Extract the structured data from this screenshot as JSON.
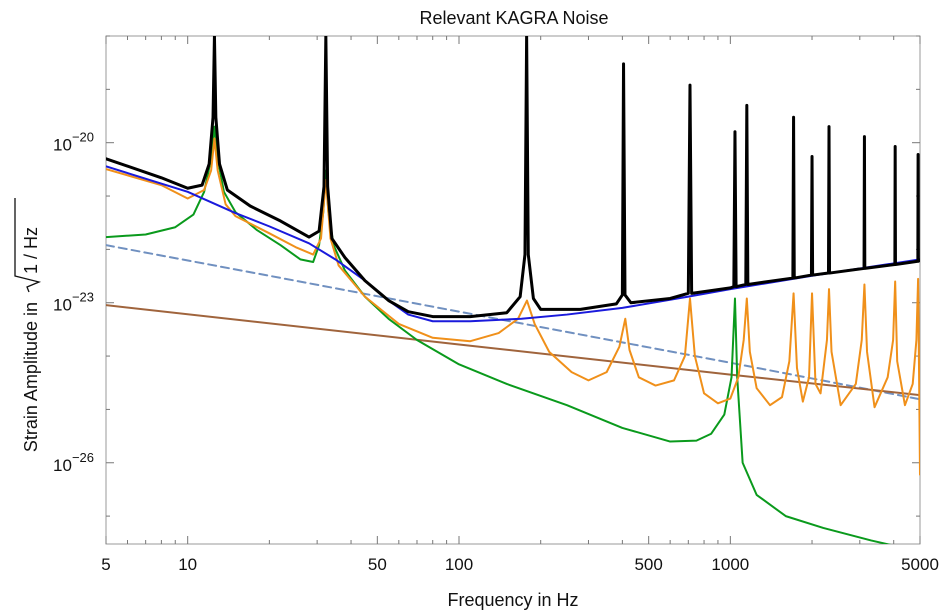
{
  "chart_data": {
    "type": "line",
    "title": "Relevant KAGRA Noise",
    "xlabel": "Frequency in Hz",
    "ylabel_prefix": "Strain Amplitude in",
    "ylabel_radicand": "1 / Hz",
    "x_scale": "log",
    "y_scale": "log",
    "xlim": [
      5,
      5000
    ],
    "ylim": [
      3e-28,
      1e-18
    ],
    "grid": false,
    "legend": "none",
    "x_ticks": [
      {
        "value": 5,
        "label": "5"
      },
      {
        "value": 10,
        "label": "10"
      },
      {
        "value": 50,
        "label": "50"
      },
      {
        "value": 100,
        "label": "100"
      },
      {
        "value": 500,
        "label": "500"
      },
      {
        "value": 1000,
        "label": "1000"
      },
      {
        "value": 5000,
        "label": "5000"
      }
    ],
    "y_ticks": [
      {
        "value": 1e-20,
        "base": "10",
        "exp": "−20"
      },
      {
        "value": 1e-23,
        "base": "10",
        "exp": "−23"
      },
      {
        "value": 1e-26,
        "base": "10",
        "exp": "−26"
      }
    ],
    "series": [
      {
        "color": "#7090c0",
        "dashed": true,
        "width": 2,
        "points": [
          [
            5,
            1.2e-22
          ],
          [
            20,
            3.2e-23
          ],
          [
            100,
            6.8e-24
          ],
          [
            1000,
            7.5e-25
          ],
          [
            5000,
            1.55e-25
          ]
        ]
      },
      {
        "color": "#a0643c",
        "dashed": false,
        "width": 2,
        "points": [
          [
            5,
            9e-24
          ],
          [
            100,
            1.65e-24
          ],
          [
            1000,
            4.5e-25
          ],
          [
            5000,
            1.85e-25
          ]
        ]
      },
      {
        "color": "#0a9a1c",
        "dashed": false,
        "width": 2,
        "points": [
          [
            5,
            1.7e-22
          ],
          [
            7,
            1.9e-22
          ],
          [
            9,
            2.6e-22
          ],
          [
            10.5,
            4.5e-22
          ],
          [
            11.5,
            1.2e-21
          ],
          [
            12.2,
            5e-21
          ],
          [
            12.55,
            2e-20
          ],
          [
            12.9,
            5e-21
          ],
          [
            13.6,
            1.2e-21
          ],
          [
            15,
            5e-22
          ],
          [
            18,
            2.3e-22
          ],
          [
            22,
            1.2e-22
          ],
          [
            26,
            6.5e-23
          ],
          [
            29,
            5.8e-23
          ],
          [
            30.5,
            1.2e-22
          ],
          [
            31.6,
            5e-22
          ],
          [
            32.3,
            3e-21
          ],
          [
            33,
            5e-22
          ],
          [
            34.5,
            1.2e-22
          ],
          [
            38,
            4e-23
          ],
          [
            45,
            1.3e-23
          ],
          [
            55,
            5e-24
          ],
          [
            70,
            2e-24
          ],
          [
            100,
            7e-25
          ],
          [
            150,
            3e-25
          ],
          [
            250,
            1.2e-25
          ],
          [
            400,
            4.5e-26
          ],
          [
            600,
            2.5e-26
          ],
          [
            750,
            2.6e-26
          ],
          [
            850,
            3.5e-26
          ],
          [
            950,
            8e-26
          ],
          [
            1010,
            4e-25
          ],
          [
            1040,
            1.2e-23
          ],
          [
            1060,
            4e-25
          ],
          [
            1110,
            1e-26
          ],
          [
            1250,
            2.5e-27
          ],
          [
            1600,
            1e-27
          ],
          [
            2200,
            6e-28
          ],
          [
            3300,
            3.5e-28
          ],
          [
            4000,
            2.8e-28
          ]
        ]
      },
      {
        "color": "#f0901a",
        "dashed": false,
        "width": 2,
        "points": [
          [
            5,
            3.2e-21
          ],
          [
            8,
            1.6e-21
          ],
          [
            10,
            9e-22
          ],
          [
            11.5,
            1.3e-21
          ],
          [
            12.2,
            3e-21
          ],
          [
            12.55,
            1.2e-20
          ],
          [
            12.9,
            3e-21
          ],
          [
            13.8,
            7e-22
          ],
          [
            15,
            4.2e-22
          ],
          [
            20,
            2e-22
          ],
          [
            25,
            1.1e-22
          ],
          [
            29,
            8e-23
          ],
          [
            31,
            1.6e-22
          ],
          [
            32.3,
            2e-21
          ],
          [
            33.6,
            1.6e-22
          ],
          [
            36,
            5e-23
          ],
          [
            45,
            1.3e-23
          ],
          [
            60,
            4e-24
          ],
          [
            80,
            2.2e-24
          ],
          [
            110,
            1.9e-24
          ],
          [
            140,
            2.7e-24
          ],
          [
            165,
            5e-24
          ],
          [
            178,
            1.1e-23
          ],
          [
            190,
            4e-24
          ],
          [
            215,
            1.2e-24
          ],
          [
            260,
            5e-25
          ],
          [
            300,
            3.5e-25
          ],
          [
            350,
            5e-25
          ],
          [
            390,
            1.5e-24
          ],
          [
            410,
            5e-24
          ],
          [
            425,
            1.3e-24
          ],
          [
            460,
            4e-25
          ],
          [
            530,
            2.8e-25
          ],
          [
            620,
            3.5e-25
          ],
          [
            680,
            1e-24
          ],
          [
            710,
            1.2e-23
          ],
          [
            740,
            1e-24
          ],
          [
            800,
            2e-25
          ],
          [
            900,
            1.3e-25
          ],
          [
            1000,
            1.6e-25
          ],
          [
            1070,
            4e-25
          ],
          [
            1120,
            2e-24
          ],
          [
            1150,
            1.2e-23
          ],
          [
            1180,
            1.2e-24
          ],
          [
            1250,
            2.5e-25
          ],
          [
            1400,
            1.2e-25
          ],
          [
            1550,
            1.7e-25
          ],
          [
            1650,
            8e-25
          ],
          [
            1710,
            1.5e-23
          ],
          [
            1760,
            6e-25
          ],
          [
            1850,
            1.4e-25
          ],
          [
            1950,
            4e-25
          ],
          [
            2000,
            1.5e-23
          ],
          [
            2060,
            3e-25
          ],
          [
            2150,
            2e-25
          ],
          [
            2270,
            2e-24
          ],
          [
            2310,
            1.8e-23
          ],
          [
            2360,
            1.2e-24
          ],
          [
            2550,
            1.2e-25
          ],
          [
            2900,
            3e-25
          ],
          [
            3050,
            2e-24
          ],
          [
            3120,
            2.2e-23
          ],
          [
            3190,
            1.2e-24
          ],
          [
            3400,
            1.1e-25
          ],
          [
            3800,
            4e-25
          ],
          [
            3980,
            2e-24
          ],
          [
            4050,
            2.5e-23
          ],
          [
            4120,
            8e-25
          ],
          [
            4400,
            1.2e-25
          ],
          [
            4700,
            3e-25
          ],
          [
            4850,
            2e-24
          ],
          [
            4920,
            2.8e-23
          ],
          [
            4960,
            5e-25
          ],
          [
            5000,
            6e-27
          ]
        ]
      },
      {
        "color": "#1a1adc",
        "dashed": false,
        "width": 2,
        "points": [
          [
            5,
            3.6e-21
          ],
          [
            10,
            1.2e-21
          ],
          [
            15,
            4.8e-22
          ],
          [
            20,
            2.7e-22
          ],
          [
            28,
            1.3e-22
          ],
          [
            35,
            6.5e-23
          ],
          [
            45,
            2.6e-23
          ],
          [
            55,
            1.1e-23
          ],
          [
            65,
            6e-24
          ],
          [
            80,
            4.5e-24
          ],
          [
            110,
            4.5e-24
          ],
          [
            170,
            5e-24
          ],
          [
            250,
            6e-24
          ],
          [
            400,
            8e-24
          ],
          [
            700,
            1.3e-23
          ],
          [
            1000,
            1.8e-23
          ],
          [
            2000,
            3.2e-23
          ],
          [
            5000,
            6.5e-23
          ]
        ]
      },
      {
        "color": "#000000",
        "dashed": false,
        "width": 3,
        "points": [
          [
            5,
            5e-21
          ],
          [
            8,
            2.2e-21
          ],
          [
            10,
            1.4e-21
          ],
          [
            11.3,
            1.6e-21
          ],
          [
            12.0,
            4e-21
          ],
          [
            12.4,
            3e-20
          ],
          [
            12.55,
            1e-18
          ],
          [
            12.7,
            3e-20
          ],
          [
            13.1,
            4e-21
          ],
          [
            14,
            1.3e-21
          ],
          [
            17,
            6.5e-22
          ],
          [
            22,
            3.4e-22
          ],
          [
            28,
            1.7e-22
          ],
          [
            30.5,
            2.2e-22
          ],
          [
            31.8,
            1.5e-21
          ],
          [
            32.3,
            1e-18
          ],
          [
            32.8,
            1.5e-21
          ],
          [
            34,
            1.6e-22
          ],
          [
            38,
            7e-23
          ],
          [
            45,
            2.6e-23
          ],
          [
            55,
            1.1e-23
          ],
          [
            65,
            6.8e-24
          ],
          [
            80,
            5.5e-24
          ],
          [
            110,
            5.5e-24
          ],
          [
            150,
            6.5e-24
          ],
          [
            168,
            1.3e-23
          ],
          [
            175,
            8e-23
          ],
          [
            177.5,
            1e-18
          ],
          [
            180,
            8e-23
          ],
          [
            188,
            1.2e-23
          ],
          [
            200,
            7.5e-24
          ],
          [
            280,
            7.5e-24
          ],
          [
            380,
            9.5e-24
          ],
          [
            400,
            1.4e-23
          ],
          [
            404,
            3e-19
          ],
          [
            409,
            1.4e-23
          ],
          [
            430,
            1e-23
          ],
          [
            600,
            1.2e-23
          ],
          [
            700,
            1.5e-23
          ],
          [
            710,
            1.2e-19
          ],
          [
            720,
            1.5e-23
          ],
          [
            1000,
            1.9e-23
          ],
          [
            1030,
            2e-23
          ],
          [
            1040,
            1.6e-20
          ],
          [
            1050,
            2e-23
          ],
          [
            1140,
            2.2e-23
          ],
          [
            1150,
            5e-20
          ],
          [
            1160,
            2.2e-23
          ],
          [
            1700,
            2.9e-23
          ],
          [
            1710,
            3e-20
          ],
          [
            1720,
            2.9e-23
          ],
          [
            1990,
            3.3e-23
          ],
          [
            2000,
            5.5e-21
          ],
          [
            2010,
            3.3e-23
          ],
          [
            2300,
            3.6e-23
          ],
          [
            2310,
            2e-20
          ],
          [
            2320,
            3.6e-23
          ],
          [
            3110,
            4.4e-23
          ],
          [
            3120,
            1.3e-20
          ],
          [
            3130,
            4.4e-23
          ],
          [
            4040,
            5.2e-23
          ],
          [
            4050,
            8.5e-21
          ],
          [
            4060,
            5.2e-23
          ],
          [
            4910,
            6e-23
          ],
          [
            4920,
            6e-21
          ],
          [
            4930,
            6e-23
          ],
          [
            5000,
            6.3e-23
          ]
        ]
      }
    ]
  }
}
